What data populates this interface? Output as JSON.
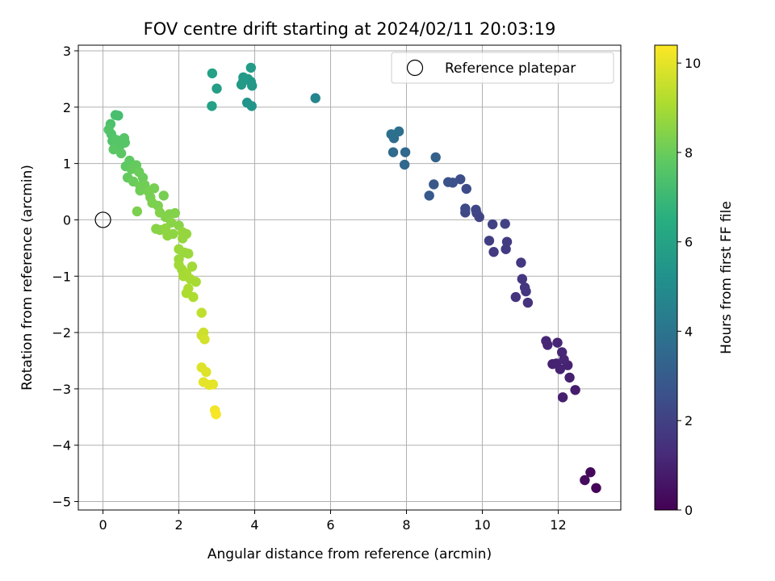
{
  "chart_data": {
    "type": "scatter",
    "title": "FOV centre drift starting at 2024/02/11 20:03:19",
    "xlabel": "Angular distance from reference (arcmin)",
    "ylabel": "Rotation from reference (arcmin)",
    "xlim": [
      -0.65,
      13.65
    ],
    "ylim": [
      -5.15,
      3.1
    ],
    "xticks": [
      0,
      2,
      4,
      6,
      8,
      10,
      12
    ],
    "yticks": [
      -5,
      -4,
      -3,
      -2,
      -1,
      0,
      1,
      2,
      3
    ],
    "xtick_labels": [
      "0",
      "2",
      "4",
      "6",
      "8",
      "10",
      "12"
    ],
    "ytick_labels": [
      "−5",
      "−4",
      "−3",
      "−2",
      "−1",
      "0",
      "1",
      "2",
      "3"
    ],
    "grid": true,
    "legend": {
      "placement": "top-right",
      "entries": [
        "Reference platepar"
      ]
    },
    "reference_point": {
      "x": 0,
      "y": 0
    },
    "colorbar": {
      "label": "Hours from first FF file",
      "range": [
        0,
        10.4
      ],
      "ticks": [
        0,
        2,
        4,
        6,
        8,
        10
      ],
      "tick_labels": [
        "0",
        "2",
        "4",
        "6",
        "8",
        "10"
      ],
      "colormap": "viridis"
    },
    "points": [
      {
        "x": 13.0,
        "y": -4.76,
        "c": 0.1
      },
      {
        "x": 12.85,
        "y": -4.48,
        "c": 0.2
      },
      {
        "x": 12.7,
        "y": -4.62,
        "c": 0.3
      },
      {
        "x": 12.45,
        "y": -3.02,
        "c": 0.8
      },
      {
        "x": 12.3,
        "y": -2.8,
        "c": 0.9
      },
      {
        "x": 12.12,
        "y": -3.15,
        "c": 0.9
      },
      {
        "x": 12.25,
        "y": -2.58,
        "c": 1.0
      },
      {
        "x": 12.05,
        "y": -2.65,
        "c": 1.0
      },
      {
        "x": 11.95,
        "y": -2.55,
        "c": 1.0
      },
      {
        "x": 11.85,
        "y": -2.56,
        "c": 1.0
      },
      {
        "x": 12.1,
        "y": -2.35,
        "c": 1.1
      },
      {
        "x": 12.15,
        "y": -2.48,
        "c": 1.1
      },
      {
        "x": 11.98,
        "y": -2.18,
        "c": 1.1
      },
      {
        "x": 11.72,
        "y": -2.22,
        "c": 1.1
      },
      {
        "x": 11.68,
        "y": -2.15,
        "c": 1.1
      },
      {
        "x": 11.2,
        "y": -1.47,
        "c": 1.5
      },
      {
        "x": 10.88,
        "y": -1.37,
        "c": 1.5
      },
      {
        "x": 11.15,
        "y": -1.27,
        "c": 1.6
      },
      {
        "x": 11.12,
        "y": -1.2,
        "c": 1.6
      },
      {
        "x": 11.05,
        "y": -1.05,
        "c": 1.6
      },
      {
        "x": 11.02,
        "y": -0.76,
        "c": 1.7
      },
      {
        "x": 10.3,
        "y": -0.57,
        "c": 1.8
      },
      {
        "x": 10.62,
        "y": -0.52,
        "c": 1.8
      },
      {
        "x": 10.65,
        "y": -0.39,
        "c": 1.8
      },
      {
        "x": 10.18,
        "y": -0.37,
        "c": 1.9
      },
      {
        "x": 10.27,
        "y": -0.08,
        "c": 2.0
      },
      {
        "x": 10.6,
        "y": -0.07,
        "c": 2.0
      },
      {
        "x": 9.92,
        "y": 0.05,
        "c": 2.1
      },
      {
        "x": 9.85,
        "y": 0.12,
        "c": 2.1
      },
      {
        "x": 9.83,
        "y": 0.18,
        "c": 2.2
      },
      {
        "x": 9.55,
        "y": 0.13,
        "c": 2.2
      },
      {
        "x": 9.55,
        "y": 0.2,
        "c": 2.3
      },
      {
        "x": 9.58,
        "y": 0.55,
        "c": 2.4
      },
      {
        "x": 9.42,
        "y": 0.72,
        "c": 2.5
      },
      {
        "x": 9.22,
        "y": 0.66,
        "c": 2.6
      },
      {
        "x": 9.1,
        "y": 0.67,
        "c": 2.6
      },
      {
        "x": 8.72,
        "y": 0.63,
        "c": 2.8
      },
      {
        "x": 8.6,
        "y": 0.43,
        "c": 2.9
      },
      {
        "x": 8.77,
        "y": 1.11,
        "c": 3.2
      },
      {
        "x": 7.95,
        "y": 0.98,
        "c": 3.5
      },
      {
        "x": 7.97,
        "y": 1.2,
        "c": 3.5
      },
      {
        "x": 7.65,
        "y": 1.2,
        "c": 3.6
      },
      {
        "x": 7.67,
        "y": 1.45,
        "c": 3.7
      },
      {
        "x": 7.6,
        "y": 1.52,
        "c": 3.8
      },
      {
        "x": 7.8,
        "y": 1.57,
        "c": 3.8
      },
      {
        "x": 5.6,
        "y": 2.16,
        "c": 4.7
      },
      {
        "x": 3.92,
        "y": 2.02,
        "c": 5.4
      },
      {
        "x": 3.8,
        "y": 2.08,
        "c": 5.4
      },
      {
        "x": 3.93,
        "y": 2.38,
        "c": 5.5
      },
      {
        "x": 3.9,
        "y": 2.45,
        "c": 5.5
      },
      {
        "x": 3.82,
        "y": 2.5,
        "c": 5.5
      },
      {
        "x": 3.7,
        "y": 2.47,
        "c": 5.6
      },
      {
        "x": 3.65,
        "y": 2.4,
        "c": 5.6
      },
      {
        "x": 3.7,
        "y": 2.53,
        "c": 5.6
      },
      {
        "x": 3.9,
        "y": 2.7,
        "c": 5.7
      },
      {
        "x": 3.0,
        "y": 2.33,
        "c": 5.8
      },
      {
        "x": 2.88,
        "y": 2.6,
        "c": 5.9
      },
      {
        "x": 2.87,
        "y": 2.02,
        "c": 5.9
      },
      {
        "x": 0.4,
        "y": 1.85,
        "c": 7.2
      },
      {
        "x": 0.33,
        "y": 1.86,
        "c": 7.3
      },
      {
        "x": 0.2,
        "y": 1.7,
        "c": 7.4
      },
      {
        "x": 0.15,
        "y": 1.6,
        "c": 7.5
      },
      {
        "x": 0.22,
        "y": 1.52,
        "c": 7.5
      },
      {
        "x": 0.25,
        "y": 1.4,
        "c": 7.5
      },
      {
        "x": 0.35,
        "y": 1.42,
        "c": 7.6
      },
      {
        "x": 0.45,
        "y": 1.32,
        "c": 7.6
      },
      {
        "x": 0.58,
        "y": 1.37,
        "c": 7.6
      },
      {
        "x": 0.56,
        "y": 1.45,
        "c": 7.6
      },
      {
        "x": 0.28,
        "y": 1.25,
        "c": 7.7
      },
      {
        "x": 0.48,
        "y": 1.18,
        "c": 7.7
      },
      {
        "x": 0.7,
        "y": 1.05,
        "c": 7.8
      },
      {
        "x": 0.6,
        "y": 0.95,
        "c": 7.8
      },
      {
        "x": 0.75,
        "y": 0.9,
        "c": 7.9
      },
      {
        "x": 0.88,
        "y": 0.97,
        "c": 7.9
      },
      {
        "x": 0.65,
        "y": 0.75,
        "c": 7.9
      },
      {
        "x": 0.8,
        "y": 0.68,
        "c": 8.0
      },
      {
        "x": 0.95,
        "y": 0.85,
        "c": 8.0
      },
      {
        "x": 1.05,
        "y": 0.75,
        "c": 8.0
      },
      {
        "x": 0.98,
        "y": 0.6,
        "c": 8.1
      },
      {
        "x": 1.1,
        "y": 0.62,
        "c": 8.1
      },
      {
        "x": 0.98,
        "y": 0.52,
        "c": 8.1
      },
      {
        "x": 1.2,
        "y": 0.5,
        "c": 8.2
      },
      {
        "x": 1.35,
        "y": 0.56,
        "c": 8.2
      },
      {
        "x": 1.25,
        "y": 0.4,
        "c": 8.2
      },
      {
        "x": 1.6,
        "y": 0.43,
        "c": 8.2
      },
      {
        "x": 1.3,
        "y": 0.3,
        "c": 8.3
      },
      {
        "x": 1.45,
        "y": 0.25,
        "c": 8.3
      },
      {
        "x": 0.9,
        "y": 0.15,
        "c": 8.3
      },
      {
        "x": 1.5,
        "y": 0.13,
        "c": 8.4
      },
      {
        "x": 1.65,
        "y": 0.05,
        "c": 8.4
      },
      {
        "x": 1.75,
        "y": 0.1,
        "c": 8.4
      },
      {
        "x": 1.9,
        "y": 0.12,
        "c": 8.4
      },
      {
        "x": 1.8,
        "y": -0.05,
        "c": 8.5
      },
      {
        "x": 2.0,
        "y": -0.1,
        "c": 8.5
      },
      {
        "x": 1.4,
        "y": -0.16,
        "c": 8.5
      },
      {
        "x": 1.5,
        "y": -0.18,
        "c": 8.5
      },
      {
        "x": 1.65,
        "y": -0.15,
        "c": 8.6
      },
      {
        "x": 1.7,
        "y": -0.28,
        "c": 8.6
      },
      {
        "x": 1.85,
        "y": -0.25,
        "c": 8.6
      },
      {
        "x": 2.1,
        "y": -0.22,
        "c": 8.7
      },
      {
        "x": 2.2,
        "y": -0.25,
        "c": 8.7
      },
      {
        "x": 2.1,
        "y": -0.33,
        "c": 8.7
      },
      {
        "x": 2.0,
        "y": -0.52,
        "c": 8.8
      },
      {
        "x": 2.15,
        "y": -0.58,
        "c": 8.8
      },
      {
        "x": 2.25,
        "y": -0.6,
        "c": 8.8
      },
      {
        "x": 2.0,
        "y": -0.7,
        "c": 8.8
      },
      {
        "x": 2.0,
        "y": -0.8,
        "c": 8.9
      },
      {
        "x": 2.08,
        "y": -0.88,
        "c": 8.9
      },
      {
        "x": 2.35,
        "y": -0.83,
        "c": 8.9
      },
      {
        "x": 2.2,
        "y": -0.95,
        "c": 9.0
      },
      {
        "x": 2.12,
        "y": -1.0,
        "c": 9.0
      },
      {
        "x": 2.3,
        "y": -1.05,
        "c": 9.0
      },
      {
        "x": 2.45,
        "y": -1.1,
        "c": 9.0
      },
      {
        "x": 2.25,
        "y": -1.22,
        "c": 9.1
      },
      {
        "x": 2.2,
        "y": -1.3,
        "c": 9.1
      },
      {
        "x": 2.38,
        "y": -1.37,
        "c": 9.1
      },
      {
        "x": 2.6,
        "y": -1.65,
        "c": 9.4
      },
      {
        "x": 2.65,
        "y": -2.0,
        "c": 9.6
      },
      {
        "x": 2.6,
        "y": -2.05,
        "c": 9.6
      },
      {
        "x": 2.68,
        "y": -2.12,
        "c": 9.7
      },
      {
        "x": 2.6,
        "y": -2.62,
        "c": 9.9
      },
      {
        "x": 2.72,
        "y": -2.7,
        "c": 9.9
      },
      {
        "x": 2.65,
        "y": -2.88,
        "c": 10.0
      },
      {
        "x": 2.8,
        "y": -2.93,
        "c": 10.0
      },
      {
        "x": 2.9,
        "y": -2.92,
        "c": 10.0
      },
      {
        "x": 2.95,
        "y": -3.38,
        "c": 10.2
      },
      {
        "x": 2.98,
        "y": -3.45,
        "c": 10.3
      }
    ]
  }
}
